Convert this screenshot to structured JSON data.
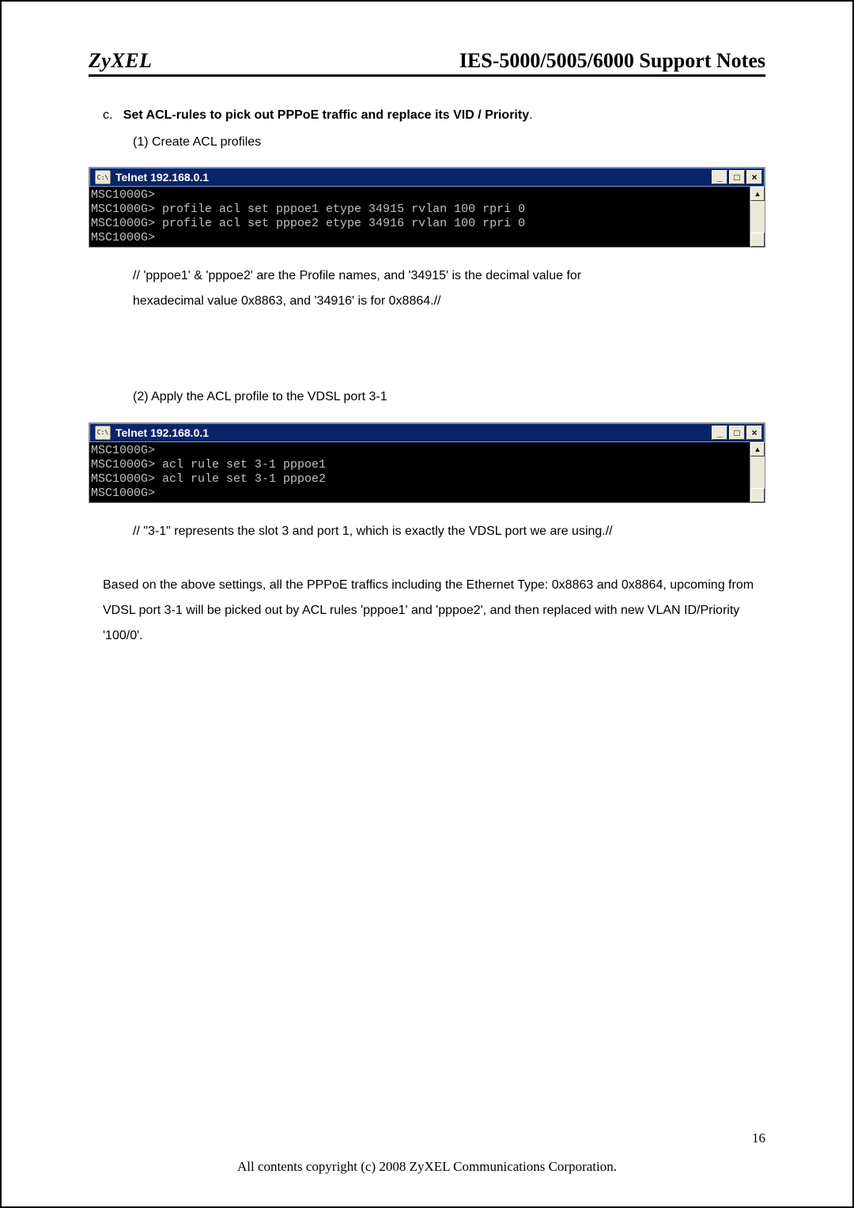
{
  "header": {
    "logo_text": "ZyXEL",
    "doc_title": "IES-5000/5005/6000 Support Notes"
  },
  "section": {
    "letter": "c.",
    "heading_bold": "Set ACL-rules to pick out PPPoE traffic and replace its VID / Priority",
    "heading_tail": ".",
    "item1_label": "(1)  Create ACL profiles",
    "item2_label": "(2)  Apply the ACL profile to the VDSL port 3-1"
  },
  "terminal": {
    "icon_text": "C:\\",
    "title_prefix": "Telnet ",
    "ip": "192.168.0.1",
    "window_buttons": {
      "min": "_",
      "max": "□",
      "close": "×"
    },
    "scroll_up": "▲",
    "scroll_down": "",
    "colors": {
      "titlebar_bg": "#0a246a",
      "titlebar_text": "#ffffff",
      "body_bg": "#000000",
      "body_text": "#c0c0c0",
      "chrome_bg": "#ece9d8"
    }
  },
  "terminal1_lines": [
    "MSC1000G>",
    "MSC1000G> profile acl set pppoe1 etype 34915 rvlan 100 rpri 0",
    "MSC1000G> profile acl set pppoe2 etype 34916 rvlan 100 rpri 0",
    "MSC1000G>"
  ],
  "note1_line1": "// 'pppoe1' & 'pppoe2' are the Profile names, and '34915' is the decimal value for",
  "note1_line2": "hexadecimal value 0x8863, and '34916' is for 0x8864.//",
  "terminal2_lines": [
    "MSC1000G>",
    "MSC1000G> acl rule set 3-1 pppoe1",
    "MSC1000G> acl rule set 3-1 pppoe2",
    "MSC1000G>"
  ],
  "note2": "// \"3-1\" represents the slot 3 and port 1, which is exactly the VDSL port we are using.//",
  "paragraph": "Based on the above settings, all the PPPoE traffics including the Ethernet Type: 0x8863 and 0x8864, upcoming from VDSL port 3-1 will be picked out by ACL rules 'pppoe1' and 'pppoe2', and then replaced with new VLAN ID/Priority '100/0'.",
  "page_number": "16",
  "footer": "All contents copyright (c) 2008 ZyXEL Communications Corporation."
}
